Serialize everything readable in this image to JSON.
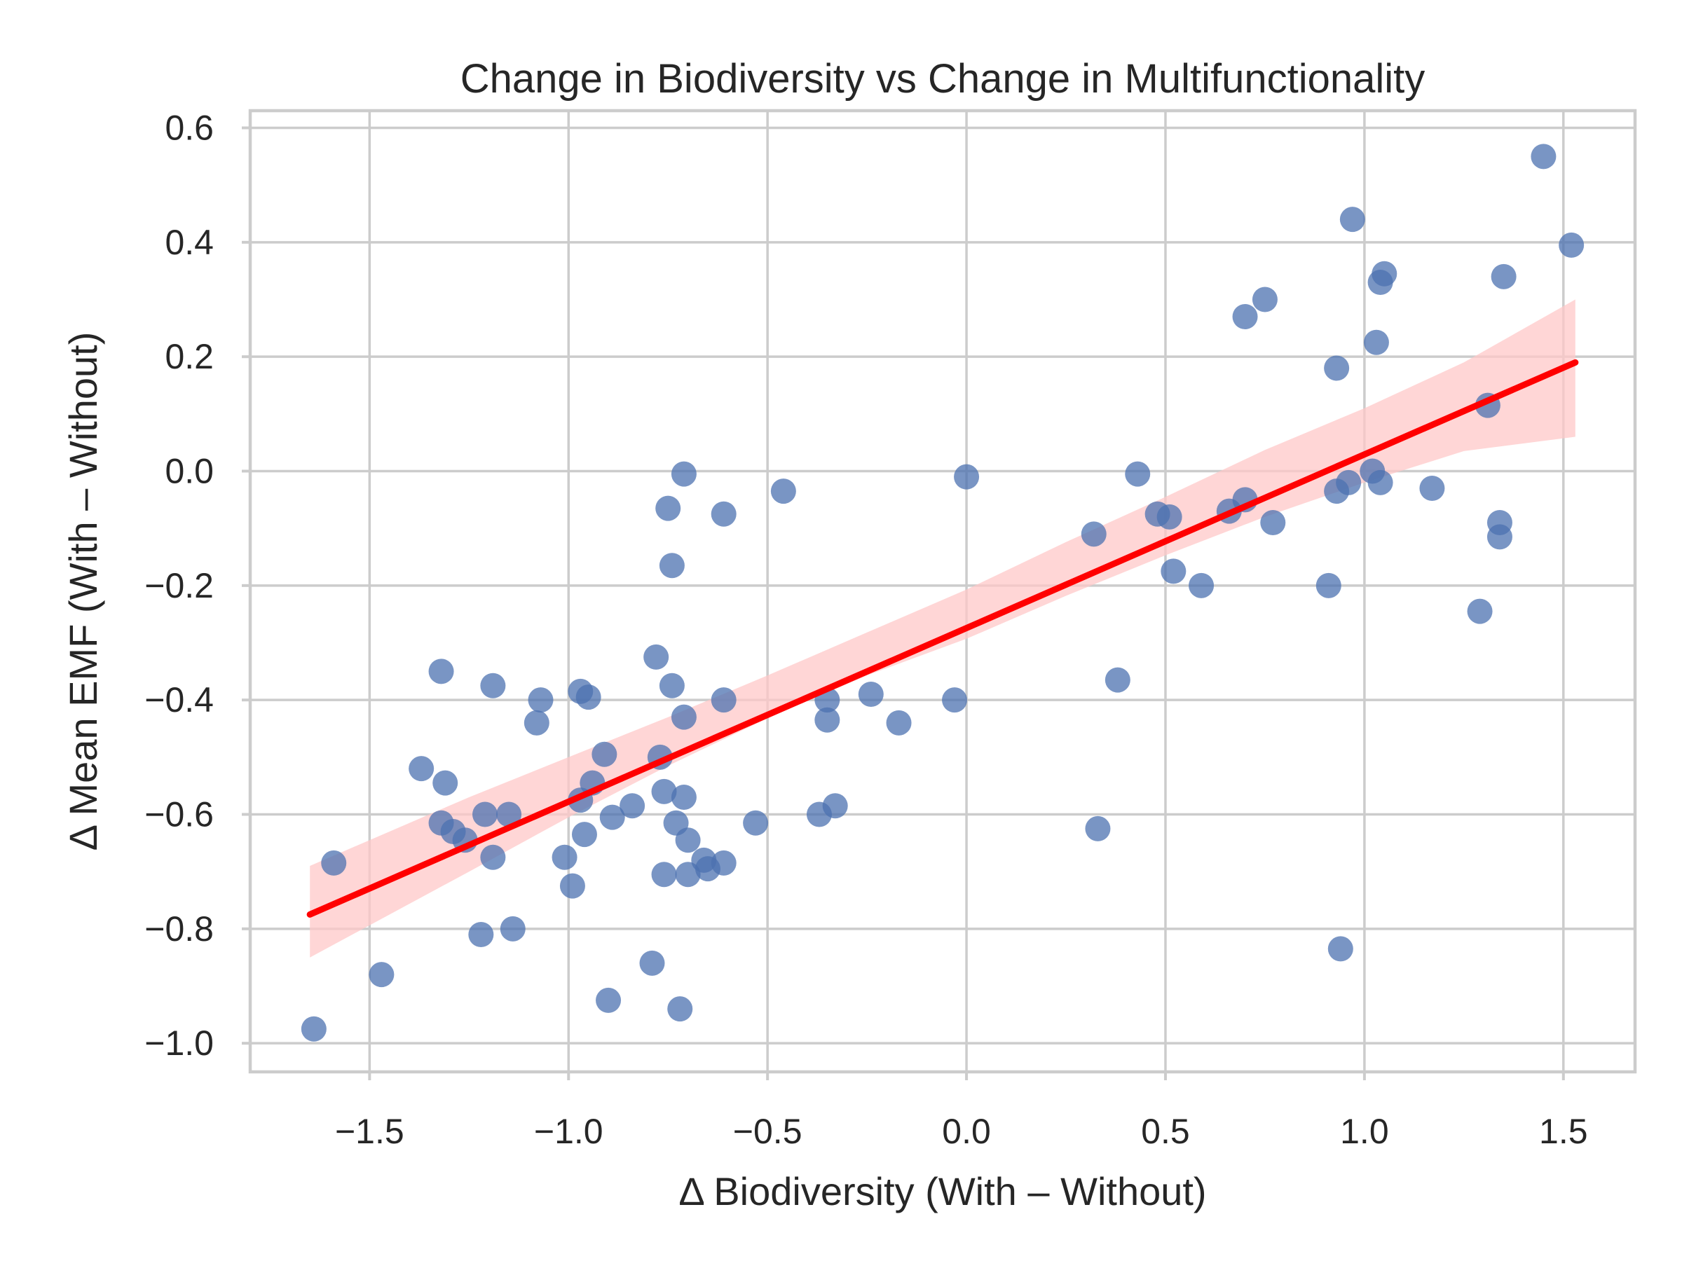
{
  "chart_data": {
    "type": "scatter",
    "title": "Change in Biodiversity vs Change in Multifunctionality",
    "xlabel": "Δ Biodiversity (With – Without)",
    "ylabel": "Δ Mean EMF (With – Without)",
    "xlim": [
      -1.8,
      1.68
    ],
    "ylim": [
      -1.05,
      0.63
    ],
    "xticks": [
      -1.5,
      -1.0,
      -0.5,
      0.0,
      0.5,
      1.0,
      1.5
    ],
    "xtick_labels": [
      "−1.5",
      "−1.0",
      "−0.5",
      "0.0",
      "0.5",
      "1.0",
      "1.5"
    ],
    "yticks": [
      -1.0,
      -0.8,
      -0.6,
      -0.4,
      -0.2,
      0.0,
      0.2,
      0.4,
      0.6
    ],
    "ytick_labels": [
      "−1.0",
      "−0.8",
      "−0.6",
      "−0.4",
      "−0.2",
      "0.0",
      "0.2",
      "0.4",
      "0.6"
    ],
    "grid": true,
    "colors": {
      "points": "#4C72B0",
      "fit_line": "#ff0000",
      "confidence_band": "#ffc8c8"
    },
    "points": [
      {
        "x": -1.64,
        "y": -0.975
      },
      {
        "x": -1.59,
        "y": -0.685
      },
      {
        "x": -1.47,
        "y": -0.88
      },
      {
        "x": -1.37,
        "y": -0.52
      },
      {
        "x": -1.32,
        "y": -0.35
      },
      {
        "x": -1.31,
        "y": -0.545
      },
      {
        "x": -1.32,
        "y": -0.615
      },
      {
        "x": -1.29,
        "y": -0.63
      },
      {
        "x": -1.26,
        "y": -0.645
      },
      {
        "x": -1.22,
        "y": -0.81
      },
      {
        "x": -1.21,
        "y": -0.6
      },
      {
        "x": -1.19,
        "y": -0.375
      },
      {
        "x": -1.19,
        "y": -0.675
      },
      {
        "x": -1.15,
        "y": -0.6
      },
      {
        "x": -1.14,
        "y": -0.8
      },
      {
        "x": -1.08,
        "y": -0.44
      },
      {
        "x": -1.07,
        "y": -0.4
      },
      {
        "x": -1.01,
        "y": -0.675
      },
      {
        "x": -0.99,
        "y": -0.725
      },
      {
        "x": -0.97,
        "y": -0.385
      },
      {
        "x": -0.97,
        "y": -0.575
      },
      {
        "x": -0.96,
        "y": -0.635
      },
      {
        "x": -0.95,
        "y": -0.395
      },
      {
        "x": -0.94,
        "y": -0.545
      },
      {
        "x": -0.91,
        "y": -0.495
      },
      {
        "x": -0.9,
        "y": -0.925
      },
      {
        "x": -0.89,
        "y": -0.605
      },
      {
        "x": -0.84,
        "y": -0.585
      },
      {
        "x": -0.79,
        "y": -0.86
      },
      {
        "x": -0.78,
        "y": -0.325
      },
      {
        "x": -0.77,
        "y": -0.5
      },
      {
        "x": -0.76,
        "y": -0.56
      },
      {
        "x": -0.76,
        "y": -0.705
      },
      {
        "x": -0.75,
        "y": -0.065
      },
      {
        "x": -0.74,
        "y": -0.165
      },
      {
        "x": -0.74,
        "y": -0.375
      },
      {
        "x": -0.73,
        "y": -0.615
      },
      {
        "x": -0.72,
        "y": -0.94
      },
      {
        "x": -0.71,
        "y": -0.005
      },
      {
        "x": -0.71,
        "y": -0.43
      },
      {
        "x": -0.71,
        "y": -0.57
      },
      {
        "x": -0.7,
        "y": -0.645
      },
      {
        "x": -0.7,
        "y": -0.705
      },
      {
        "x": -0.66,
        "y": -0.68
      },
      {
        "x": -0.65,
        "y": -0.695
      },
      {
        "x": -0.61,
        "y": -0.075
      },
      {
        "x": -0.61,
        "y": -0.4
      },
      {
        "x": -0.61,
        "y": -0.685
      },
      {
        "x": -0.53,
        "y": -0.615
      },
      {
        "x": -0.46,
        "y": -0.035
      },
      {
        "x": -0.37,
        "y": -0.6
      },
      {
        "x": -0.35,
        "y": -0.4
      },
      {
        "x": -0.35,
        "y": -0.435
      },
      {
        "x": -0.33,
        "y": -0.585
      },
      {
        "x": -0.24,
        "y": -0.39
      },
      {
        "x": -0.17,
        "y": -0.44
      },
      {
        "x": -0.03,
        "y": -0.4
      },
      {
        "x": 0.0,
        "y": -0.01
      },
      {
        "x": 0.32,
        "y": -0.11
      },
      {
        "x": 0.33,
        "y": -0.625
      },
      {
        "x": 0.38,
        "y": -0.365
      },
      {
        "x": 0.43,
        "y": -0.005
      },
      {
        "x": 0.48,
        "y": -0.075
      },
      {
        "x": 0.51,
        "y": -0.08
      },
      {
        "x": 0.52,
        "y": -0.175
      },
      {
        "x": 0.59,
        "y": -0.2
      },
      {
        "x": 0.66,
        "y": -0.07
      },
      {
        "x": 0.7,
        "y": -0.05
      },
      {
        "x": 0.7,
        "y": 0.27
      },
      {
        "x": 0.75,
        "y": 0.3
      },
      {
        "x": 0.77,
        "y": -0.09
      },
      {
        "x": 0.91,
        "y": -0.2
      },
      {
        "x": 0.93,
        "y": 0.18
      },
      {
        "x": 0.93,
        "y": -0.035
      },
      {
        "x": 0.94,
        "y": -0.835
      },
      {
        "x": 0.96,
        "y": -0.02
      },
      {
        "x": 0.97,
        "y": 0.44
      },
      {
        "x": 1.02,
        "y": 0.0
      },
      {
        "x": 1.04,
        "y": -0.02
      },
      {
        "x": 1.03,
        "y": 0.225
      },
      {
        "x": 1.04,
        "y": 0.33
      },
      {
        "x": 1.05,
        "y": 0.345
      },
      {
        "x": 1.17,
        "y": -0.03
      },
      {
        "x": 1.29,
        "y": -0.245
      },
      {
        "x": 1.31,
        "y": 0.115
      },
      {
        "x": 1.34,
        "y": -0.09
      },
      {
        "x": 1.34,
        "y": -0.115
      },
      {
        "x": 1.35,
        "y": 0.34
      },
      {
        "x": 1.45,
        "y": 0.55
      },
      {
        "x": 1.52,
        "y": 0.395
      }
    ],
    "regression_line": {
      "x": [
        -1.65,
        1.53
      ],
      "y": [
        -0.775,
        0.19
      ]
    },
    "confidence_band": {
      "x": [
        -1.65,
        -1.25,
        -1.0,
        -0.75,
        -0.5,
        -0.25,
        0.0,
        0.25,
        0.5,
        0.75,
        1.0,
        1.25,
        1.53
      ],
      "lower": [
        -0.85,
        -0.7,
        -0.605,
        -0.515,
        -0.432,
        -0.357,
        -0.293,
        -0.218,
        -0.147,
        -0.08,
        -0.02,
        0.035,
        0.06
      ],
      "upper": [
        -0.69,
        -0.57,
        -0.5,
        -0.43,
        -0.357,
        -0.282,
        -0.207,
        -0.124,
        -0.045,
        0.037,
        0.11,
        0.19,
        0.3
      ]
    }
  }
}
